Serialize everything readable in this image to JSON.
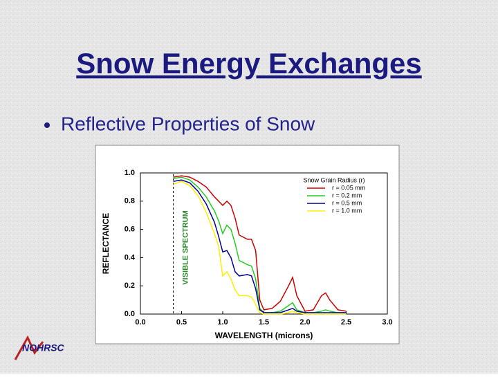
{
  "slide": {
    "title": "Snow Energy Exchanges",
    "bullet": "Reflective Properties of Snow",
    "logo": "NOHRSC"
  },
  "chart_data": {
    "type": "line",
    "xlabel": "WAVELENGTH (microns)",
    "ylabel": "REFLECTANCE",
    "annotation": {
      "text": "VISIBLE SPECTRUM",
      "x": 0.4
    },
    "legend_title": "Snow Grain Radius (r)",
    "legend": "upper right",
    "x": [
      0.4,
      0.5,
      0.6,
      0.7,
      0.8,
      0.9,
      0.95,
      1.0,
      1.05,
      1.1,
      1.15,
      1.2,
      1.3,
      1.35,
      1.4,
      1.45,
      1.5,
      1.6,
      1.7,
      1.8,
      1.85,
      1.9,
      2.0,
      2.1,
      2.2,
      2.25,
      2.3,
      2.4,
      2.5
    ],
    "series": [
      {
        "name": "r = 0.05 mm",
        "color": "#cc0000",
        "values": [
          0.97,
          0.98,
          0.97,
          0.94,
          0.9,
          0.83,
          0.8,
          0.77,
          0.8,
          0.77,
          0.68,
          0.56,
          0.53,
          0.53,
          0.45,
          0.1,
          0.03,
          0.04,
          0.09,
          0.2,
          0.26,
          0.13,
          0.02,
          0.03,
          0.13,
          0.15,
          0.1,
          0.03,
          0.02
        ]
      },
      {
        "name": "r = 0.2 mm",
        "color": "#22cc22",
        "values": [
          0.96,
          0.97,
          0.95,
          0.9,
          0.83,
          0.73,
          0.66,
          0.57,
          0.63,
          0.6,
          0.5,
          0.38,
          0.35,
          0.34,
          0.25,
          0.04,
          0.01,
          0.01,
          0.02,
          0.06,
          0.08,
          0.03,
          0.01,
          0.01,
          0.02,
          0.03,
          0.02,
          0.01,
          0.01
        ]
      },
      {
        "name": "r = 0.5 mm",
        "color": "#000099",
        "values": [
          0.94,
          0.95,
          0.93,
          0.87,
          0.78,
          0.65,
          0.55,
          0.44,
          0.45,
          0.4,
          0.3,
          0.27,
          0.28,
          0.27,
          0.18,
          0.03,
          0.01,
          0.01,
          0.01,
          0.03,
          0.04,
          0.02,
          0.01,
          0.01,
          0.01,
          0.01,
          0.01,
          0.01,
          0.01
        ]
      },
      {
        "name": "r = 1.0 mm",
        "color": "#ffee00",
        "values": [
          0.92,
          0.94,
          0.91,
          0.84,
          0.72,
          0.57,
          0.48,
          0.27,
          0.3,
          0.25,
          0.17,
          0.13,
          0.13,
          0.12,
          0.07,
          0.01,
          0.0,
          0.0,
          0.0,
          0.01,
          0.02,
          0.01,
          0.0,
          0.0,
          0.0,
          0.0,
          0.0,
          0.0,
          0.0
        ]
      }
    ],
    "xlim": [
      0,
      3
    ],
    "ylim": [
      0,
      1
    ],
    "xticks": [
      {
        "value": 0,
        "label": "0.0"
      },
      0.5,
      {
        "value": 1,
        "label": "1.0"
      },
      1.5,
      {
        "value": 2,
        "label": "2.0"
      },
      2.5,
      {
        "value": 3,
        "label": "3.0"
      }
    ],
    "yticks": [
      {
        "value": 0,
        "label": "0.0"
      },
      0.2,
      0.4,
      0.6,
      0.8,
      {
        "value": 1,
        "label": "1.0"
      }
    ],
    "grid": false
  }
}
